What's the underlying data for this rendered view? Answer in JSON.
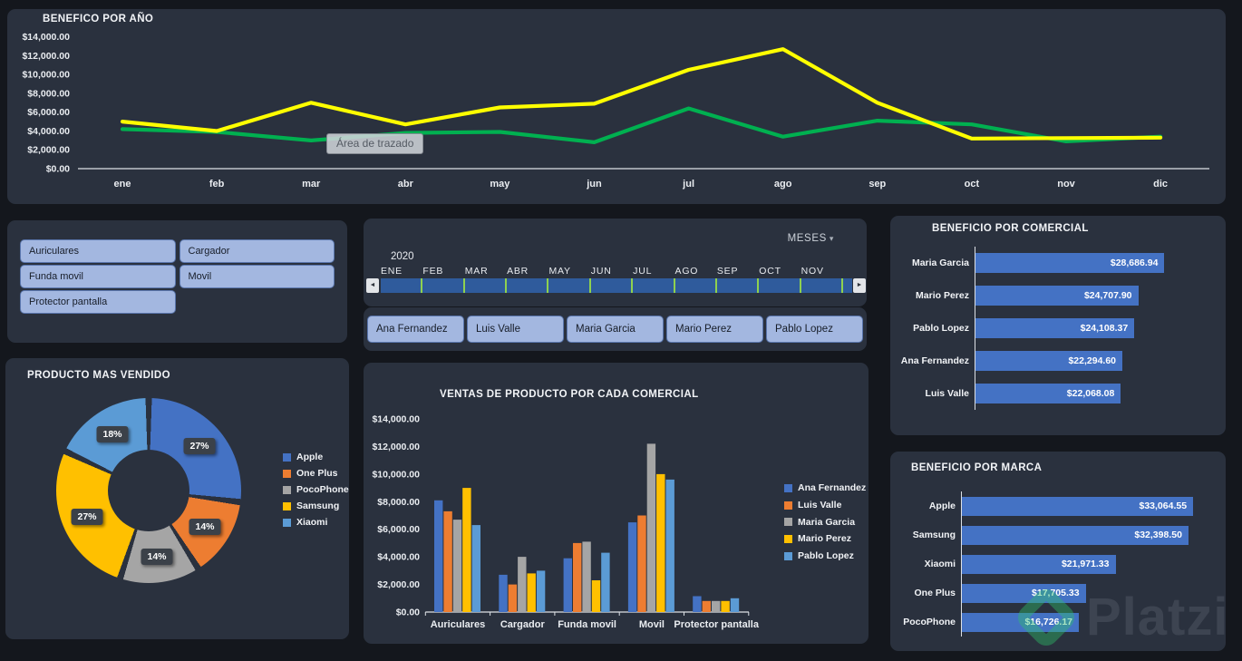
{
  "theme": {
    "background": "#14171d",
    "panel": "#2a313e",
    "slicer_fill": "#a3b7e0",
    "slicer_border": "#5a76ad",
    "timeline_bar": "#2f5b9c",
    "timeline_tick": "#8fd14f",
    "bar_blue": "#4472c4",
    "line_yellow": "#ffff00",
    "line_green": "#00b050"
  },
  "slicers": {
    "productos": [
      "Auriculares",
      "Cargador",
      "Funda movil",
      "Movil",
      "Protector pantalla"
    ],
    "comerciales": [
      "Ana Fernandez",
      "Luis Valle",
      "Maria Garcia",
      "Mario Perez",
      "Pablo Lopez"
    ]
  },
  "timeline": {
    "field_label": "MESES",
    "caret": "▾",
    "year": "2020",
    "months": [
      "ENE",
      "FEB",
      "MAR",
      "ABR",
      "MAY",
      "JUN",
      "JUL",
      "AGO",
      "SEP",
      "OCT",
      "NOV"
    ],
    "prev_arrow": "◄",
    "next_arrow": "►"
  },
  "watermark": {
    "text": "Platzi"
  },
  "chart_data": [
    {
      "type": "line",
      "title": "BENEFICO POR AÑO",
      "plot_area_tooltip": "Área de trazado",
      "x": [
        "ene",
        "feb",
        "mar",
        "abr",
        "may",
        "jun",
        "jul",
        "ago",
        "sep",
        "oct",
        "nov",
        "dic"
      ],
      "y_ticks": [
        "$0.00",
        "$2,000.00",
        "$4,000.00",
        "$6,000.00",
        "$8,000.00",
        "$10,000.00",
        "$12,000.00",
        "$14,000.00"
      ],
      "ylim": [
        0,
        14000
      ],
      "grid": false,
      "legend": "none",
      "series": [
        {
          "color": "#ffff00",
          "values": [
            5000,
            4000,
            7000,
            4700,
            6500,
            6900,
            10500,
            12700,
            7000,
            3200,
            3250,
            3300
          ]
        },
        {
          "color": "#00b050",
          "values": [
            4200,
            3900,
            3000,
            3800,
            3900,
            2800,
            6400,
            3400,
            5100,
            4700,
            2900,
            3400
          ]
        }
      ]
    },
    {
      "type": "pie",
      "title": "PRODUCTO MAS VENDIDO",
      "labels": [
        "Apple",
        "One Plus",
        "PocoPhone",
        "Samsung",
        "Xiaomi"
      ],
      "values": [
        27,
        14,
        14,
        27,
        18
      ],
      "display": [
        "27%",
        "14%",
        "14%",
        "27%",
        "18%"
      ],
      "colors": [
        "#4472c4",
        "#ed7d31",
        "#a5a5a5",
        "#ffc000",
        "#5b9bd5"
      ],
      "donut": true,
      "legend_position": "right"
    },
    {
      "type": "bar",
      "title": "VENTAS DE PRODUCTO POR CADA COMERCIAL",
      "categories": [
        "Auriculares",
        "Cargador",
        "Funda movil",
        "Movil",
        "Protector pantalla"
      ],
      "y_ticks": [
        "$0.00",
        "$2,000.00",
        "$4,000.00",
        "$6,000.00",
        "$8,000.00",
        "$10,000.00",
        "$12,000.00",
        "$14,000.00"
      ],
      "ylim": [
        0,
        14000
      ],
      "legend_position": "right",
      "series": [
        {
          "name": "Ana Fernandez",
          "color": "#4472c4",
          "values": [
            8100,
            2700,
            3900,
            6500,
            1150
          ]
        },
        {
          "name": "Luis Valle",
          "color": "#ed7d31",
          "values": [
            7300,
            2000,
            5000,
            7000,
            800
          ]
        },
        {
          "name": "Maria Garcia",
          "color": "#a5a5a5",
          "values": [
            6700,
            4000,
            5100,
            12200,
            800
          ]
        },
        {
          "name": "Mario Perez",
          "color": "#ffc000",
          "values": [
            9000,
            2800,
            2300,
            10000,
            800
          ]
        },
        {
          "name": "Pablo Lopez",
          "color": "#5b9bd5",
          "values": [
            6300,
            3000,
            4300,
            9600,
            1000
          ]
        }
      ]
    },
    {
      "type": "bar-horizontal",
      "title": "BENEFICIO POR COMERCIAL",
      "axis_max": 30000,
      "bar_color": "#4472c4",
      "bars": [
        {
          "label": "Maria Garcia",
          "value": 28686.94,
          "formatted": "$28,686.94"
        },
        {
          "label": "Mario Perez",
          "value": 24707.9,
          "formatted": "$24,707.90"
        },
        {
          "label": "Pablo Lopez",
          "value": 24108.37,
          "formatted": "$24,108.37"
        },
        {
          "label": "Ana Fernandez",
          "value": 22294.6,
          "formatted": "$22,294.60"
        },
        {
          "label": "Luis Valle",
          "value": 22068.08,
          "formatted": "$22,068.08"
        }
      ]
    },
    {
      "type": "bar-horizontal",
      "title": "BENEFICIO POR MARCA",
      "axis_max": 35000,
      "bar_color": "#4472c4",
      "bars": [
        {
          "label": "Apple",
          "value": 33064.55,
          "formatted": "$33,064.55"
        },
        {
          "label": "Samsung",
          "value": 32398.5,
          "formatted": "$32,398.50"
        },
        {
          "label": "Xiaomi",
          "value": 21971.33,
          "formatted": "$21,971.33"
        },
        {
          "label": "One Plus",
          "value": 17705.33,
          "formatted": "$17,705.33"
        },
        {
          "label": "PocoPhone",
          "value": 16726.17,
          "formatted": "$16,726.17"
        }
      ]
    }
  ]
}
